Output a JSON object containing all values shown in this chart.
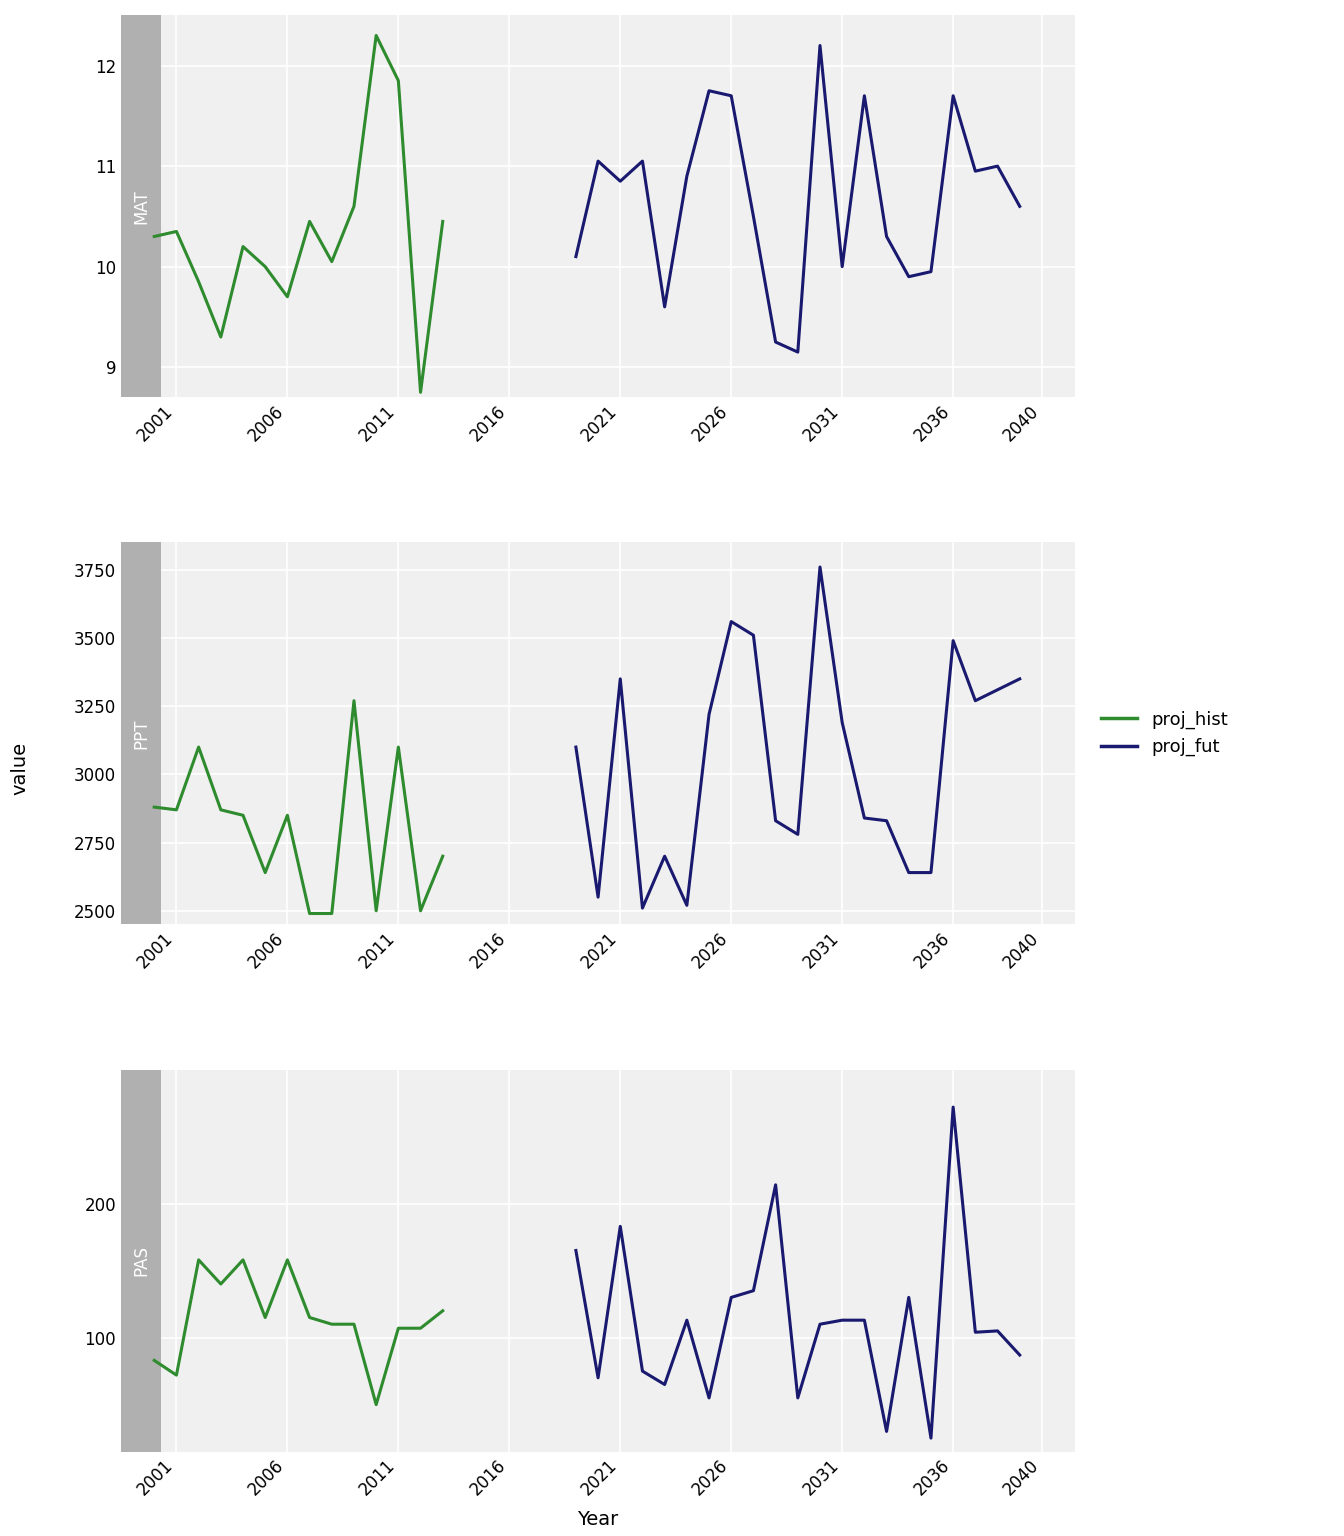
{
  "mat_hist_years": [
    2000,
    2001,
    2002,
    2003,
    2004,
    2005,
    2006,
    2007,
    2008,
    2009,
    2010,
    2011,
    2012,
    2013
  ],
  "mat_hist_values": [
    10.3,
    10.35,
    9.85,
    9.3,
    10.2,
    10.0,
    9.7,
    10.45,
    10.05,
    10.6,
    12.3,
    11.85,
    8.75,
    10.45
  ],
  "mat_fut_years": [
    2019,
    2020,
    2021,
    2022,
    2023,
    2024,
    2025,
    2026,
    2027,
    2028,
    2029,
    2030,
    2031,
    2032,
    2033,
    2034,
    2035,
    2036,
    2037,
    2038,
    2039
  ],
  "mat_fut_values": [
    10.1,
    11.05,
    10.85,
    11.05,
    9.6,
    10.9,
    11.75,
    11.7,
    10.5,
    9.25,
    9.15,
    12.2,
    10.0,
    11.7,
    10.3,
    9.9,
    9.95,
    11.7,
    10.95,
    11.0,
    10.6
  ],
  "ppt_hist_years": [
    2000,
    2001,
    2002,
    2003,
    2004,
    2005,
    2006,
    2007,
    2008,
    2009,
    2010,
    2011,
    2012,
    2013
  ],
  "ppt_hist_values": [
    2880,
    2870,
    3100,
    2870,
    2850,
    2640,
    2850,
    2490,
    2490,
    3270,
    2500,
    3100,
    2500,
    2700
  ],
  "ppt_fut_years": [
    2019,
    2020,
    2021,
    2022,
    2023,
    2024,
    2025,
    2026,
    2027,
    2028,
    2029,
    2030,
    2031,
    2032,
    2033,
    2034,
    2035,
    2036,
    2037,
    2038,
    2039
  ],
  "ppt_fut_values": [
    3100,
    2550,
    3350,
    2510,
    2700,
    2520,
    3220,
    3560,
    3510,
    2830,
    2780,
    3760,
    3190,
    2840,
    2830,
    2640,
    2640,
    3490,
    3270,
    3310,
    3350
  ],
  "pas_hist_years": [
    2000,
    2001,
    2002,
    2003,
    2004,
    2005,
    2006,
    2007,
    2008,
    2009,
    2010,
    2011,
    2012,
    2013
  ],
  "pas_hist_values": [
    83,
    72,
    158,
    140,
    158,
    115,
    158,
    115,
    110,
    110,
    50,
    107,
    107,
    120
  ],
  "pas_fut_years": [
    2019,
    2020,
    2021,
    2022,
    2023,
    2024,
    2025,
    2026,
    2027,
    2028,
    2029,
    2030,
    2031,
    2032,
    2033,
    2034,
    2035,
    2036,
    2037,
    2038,
    2039
  ],
  "pas_fut_values": [
    165,
    70,
    183,
    75,
    65,
    113,
    55,
    130,
    135,
    214,
    55,
    110,
    113,
    113,
    30,
    130,
    25,
    272,
    104,
    105,
    87
  ],
  "color_hist": "#2e8b2e",
  "color_fut": "#191970",
  "color_label_bg": "#b0b0b0",
  "background_color": "#ffffff",
  "plot_bg_color": "#f0f0f0",
  "grid_color": "#ffffff",
  "panel_labels": [
    "MAT",
    "PPT",
    "PAS"
  ],
  "ylabel": "value",
  "xlabel": "Year",
  "legend_labels": [
    "proj_hist",
    "proj_fut"
  ],
  "xticks": [
    2001,
    2006,
    2011,
    2016,
    2021,
    2026,
    2031,
    2036,
    2040
  ],
  "mat_ylim": [
    8.7,
    12.5
  ],
  "mat_yticks": [
    9,
    10,
    11,
    12
  ],
  "ppt_ylim": [
    2450,
    3850
  ],
  "ppt_yticks": [
    2500,
    2750,
    3000,
    3250,
    3500,
    3750
  ],
  "pas_ylim": [
    15,
    300
  ],
  "pas_yticks": [
    100,
    200
  ]
}
